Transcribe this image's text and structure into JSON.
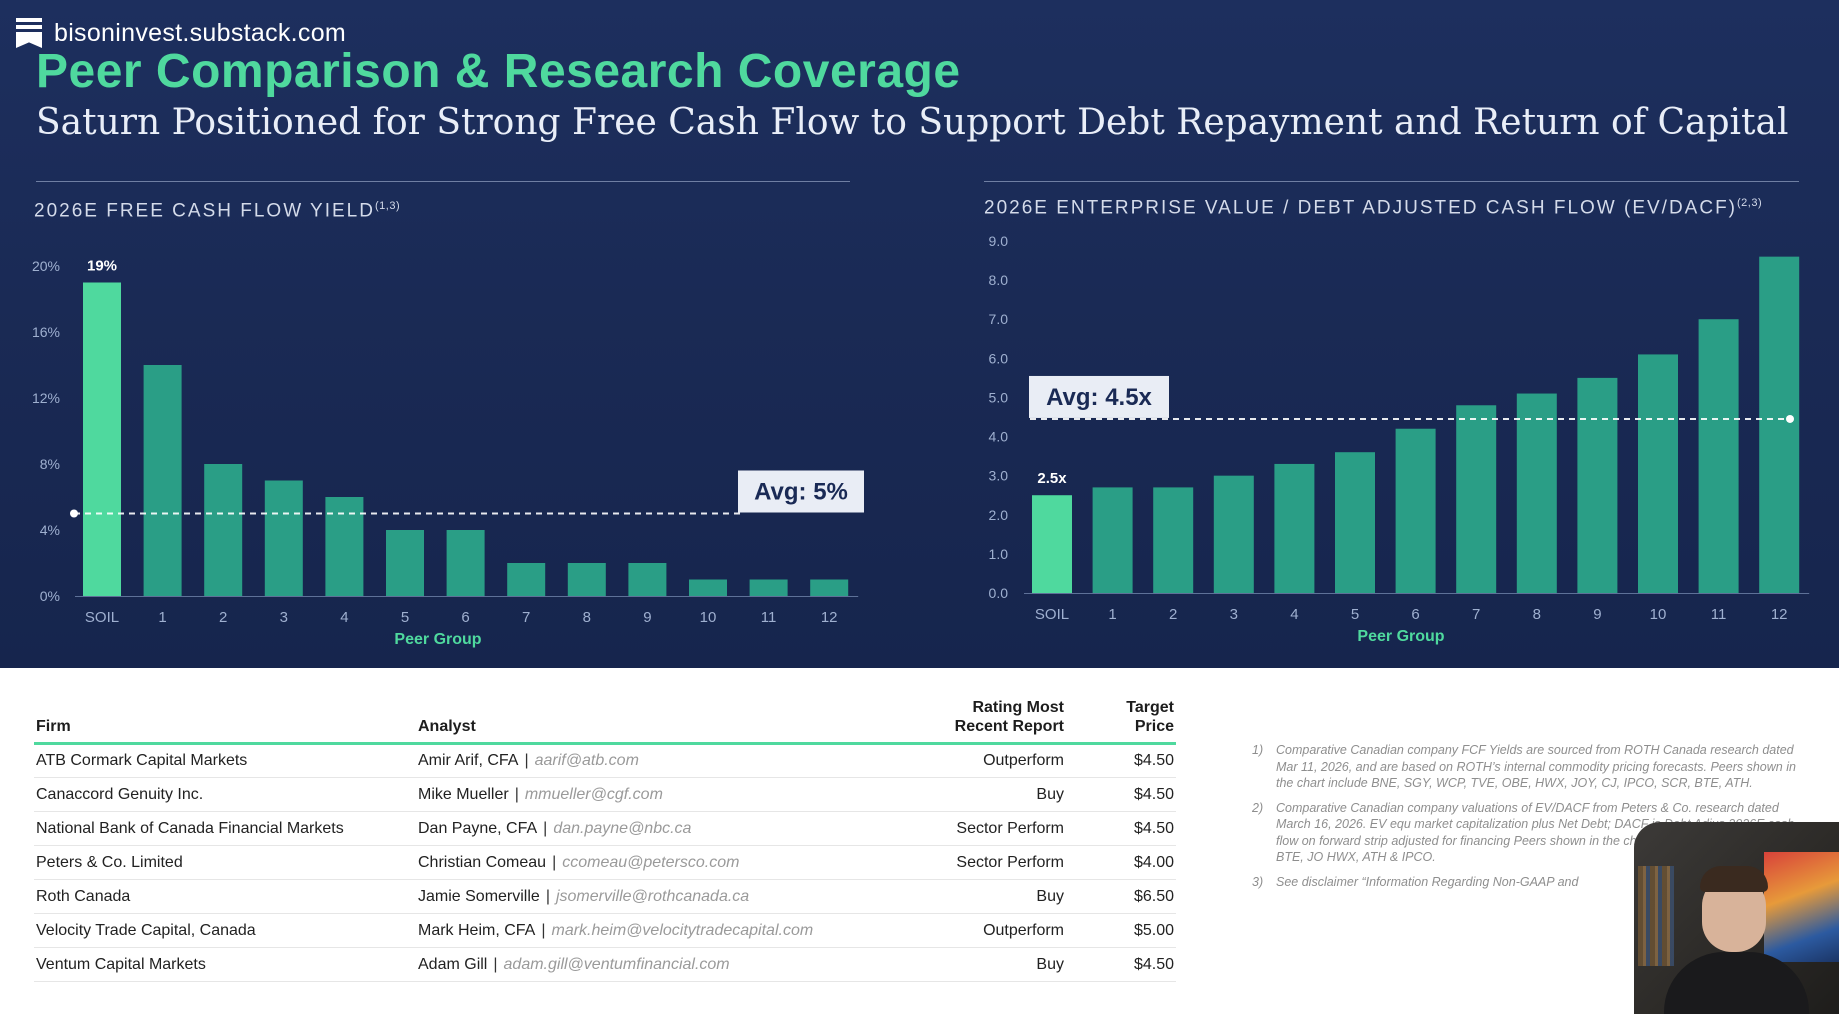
{
  "brand": {
    "name": "bisoninvest.substack.com",
    "icon": "bookmark-flag-icon"
  },
  "slide": {
    "title": "Peer Comparison & Research Coverage",
    "subtitle": "Saturn Positioned for Strong Free Cash Flow to Support Debt Repayment and Return of Capital",
    "colors": {
      "title": "#4fd99e",
      "highlight_bar": "#4fd99e",
      "peer_bar": "#2a9e86",
      "background": "#1b2c58"
    }
  },
  "chart_data": [
    {
      "type": "bar",
      "title": "2026E FREE CASH FLOW YIELD",
      "title_sup": "(1,3)",
      "xlabel": "Peer Group",
      "ylabel": "",
      "categories": [
        "SOIL",
        "1",
        "2",
        "3",
        "4",
        "5",
        "6",
        "7",
        "8",
        "9",
        "10",
        "11",
        "12"
      ],
      "values": [
        19,
        14,
        8,
        7,
        6,
        4,
        4,
        2,
        2,
        2,
        1,
        1,
        1
      ],
      "ylim": [
        0,
        20
      ],
      "yticks": [
        0,
        4,
        8,
        12,
        16,
        20
      ],
      "ytick_labels": [
        "0%",
        "4%",
        "8%",
        "12%",
        "16%",
        "20%"
      ],
      "data_labels": [
        {
          "category": "SOIL",
          "text": "19%"
        }
      ],
      "average": {
        "value": 5,
        "label": "Avg: 5%"
      },
      "grid": false,
      "legend": "none"
    },
    {
      "type": "bar",
      "title": "2026E ENTERPRISE VALUE / DEBT ADJUSTED CASH FLOW (EV/DACF)",
      "title_sup": "(2,3)",
      "xlabel": "Peer Group",
      "ylabel": "",
      "categories": [
        "SOIL",
        "1",
        "2",
        "3",
        "4",
        "5",
        "6",
        "7",
        "8",
        "9",
        "10",
        "11",
        "12"
      ],
      "values": [
        2.5,
        2.7,
        2.7,
        3.0,
        3.3,
        3.6,
        4.2,
        4.8,
        5.1,
        5.5,
        6.1,
        7.0,
        8.6
      ],
      "ylim": [
        0,
        9
      ],
      "yticks": [
        0,
        1,
        2,
        3,
        4,
        5,
        6,
        7,
        8,
        9
      ],
      "ytick_labels": [
        "0.0",
        "1.0",
        "2.0",
        "3.0",
        "4.0",
        "5.0",
        "6.0",
        "7.0",
        "8.0",
        "9.0"
      ],
      "data_labels": [
        {
          "category": "SOIL",
          "text": "2.5x"
        }
      ],
      "average": {
        "value": 4.45,
        "label": "Avg: 4.5x"
      },
      "grid": false,
      "legend": "none"
    }
  ],
  "coverage_table": {
    "headers": {
      "firm": "Firm",
      "analyst": "Analyst",
      "rating_line1": "Rating Most",
      "rating_line2": "Recent Report",
      "price_line1": "Target",
      "price_line2": "Price"
    },
    "rows": [
      {
        "firm": "ATB Cormark Capital Markets",
        "analyst": "Amir Arif, CFA",
        "email": "aarif@atb.com",
        "rating": "Outperform",
        "price": "$4.50"
      },
      {
        "firm": "Canaccord Genuity Inc.",
        "analyst": "Mike Mueller",
        "email": "mmueller@cgf.com",
        "rating": "Buy",
        "price": "$4.50"
      },
      {
        "firm": "National Bank of Canada Financial Markets",
        "analyst": "Dan Payne, CFA",
        "email": "dan.payne@nbc.ca",
        "rating": "Sector Perform",
        "price": "$4.50"
      },
      {
        "firm": "Peters & Co. Limited",
        "analyst": "Christian Comeau",
        "email": "ccomeau@petersco.com",
        "rating": "Sector Perform",
        "price": "$4.00"
      },
      {
        "firm": "Roth Canada",
        "analyst": "Jamie Somerville",
        "email": "jsomerville@rothcanada.ca",
        "rating": "Buy",
        "price": "$6.50"
      },
      {
        "firm": "Velocity Trade Capital, Canada",
        "analyst": "Mark Heim, CFA",
        "email": "mark.heim@velocitytradecapital.com",
        "rating": "Outperform",
        "price": "$5.00"
      },
      {
        "firm": "Ventum Capital Markets",
        "analyst": "Adam Gill",
        "email": "adam.gill@ventumfinancial.com",
        "rating": "Buy",
        "price": "$4.50"
      }
    ],
    "separator": "|"
  },
  "footnotes": [
    {
      "num": "1)",
      "text": "Comparative Canadian company FCF Yields are sourced from ROTH Canada research dated Mar 11, 2026, and are based on ROTH’s internal commodity pricing forecasts. Peers shown in the chart include BNE, SGY, WCP, TVE, OBE, HWX, JOY, CJ, IPCO, SCR, BTE, ATH."
    },
    {
      "num": "2)",
      "text": "Comparative Canadian company valuations of EV/DACF from Peters & Co. research dated March 16, 2026. EV equ market capitalization plus Net Debt; DACF is Debt Adjus 2026E cash flow on forward strip adjusted for financing Peers shown in the chart include BNE, OBE, SGY, BTE, JO HWX, ATH & IPCO."
    },
    {
      "num": "3)",
      "text": "See disclaimer “Information Regarding Non-GAAP and"
    }
  ]
}
